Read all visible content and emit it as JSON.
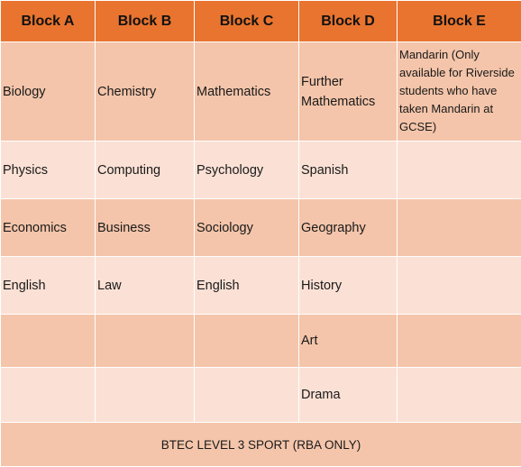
{
  "headers": [
    "Block A",
    "Block B",
    "Block C",
    "Block D",
    "Block E"
  ],
  "rows": [
    [
      "Biology",
      "Chemistry",
      "Mathematics",
      "Further Mathematics",
      "Mandarin (Only available for Riverside students who have taken Mandarin at GCSE)"
    ],
    [
      "Physics",
      "Computing",
      "Psychology",
      "Spanish",
      ""
    ],
    [
      "Economics",
      "Business",
      "Sociology",
      "Geography",
      ""
    ],
    [
      "English",
      "Law",
      "English",
      "History",
      ""
    ],
    [
      "",
      "",
      "",
      "Art",
      ""
    ],
    [
      "",
      "",
      "",
      "Drama",
      ""
    ]
  ],
  "footer": "BTEC LEVEL 3 SPORT (RBA ONLY)",
  "colors": {
    "header_bg": "#e8742f",
    "row_dark": "#f4c5aa",
    "row_light": "#fbe1d5"
  }
}
